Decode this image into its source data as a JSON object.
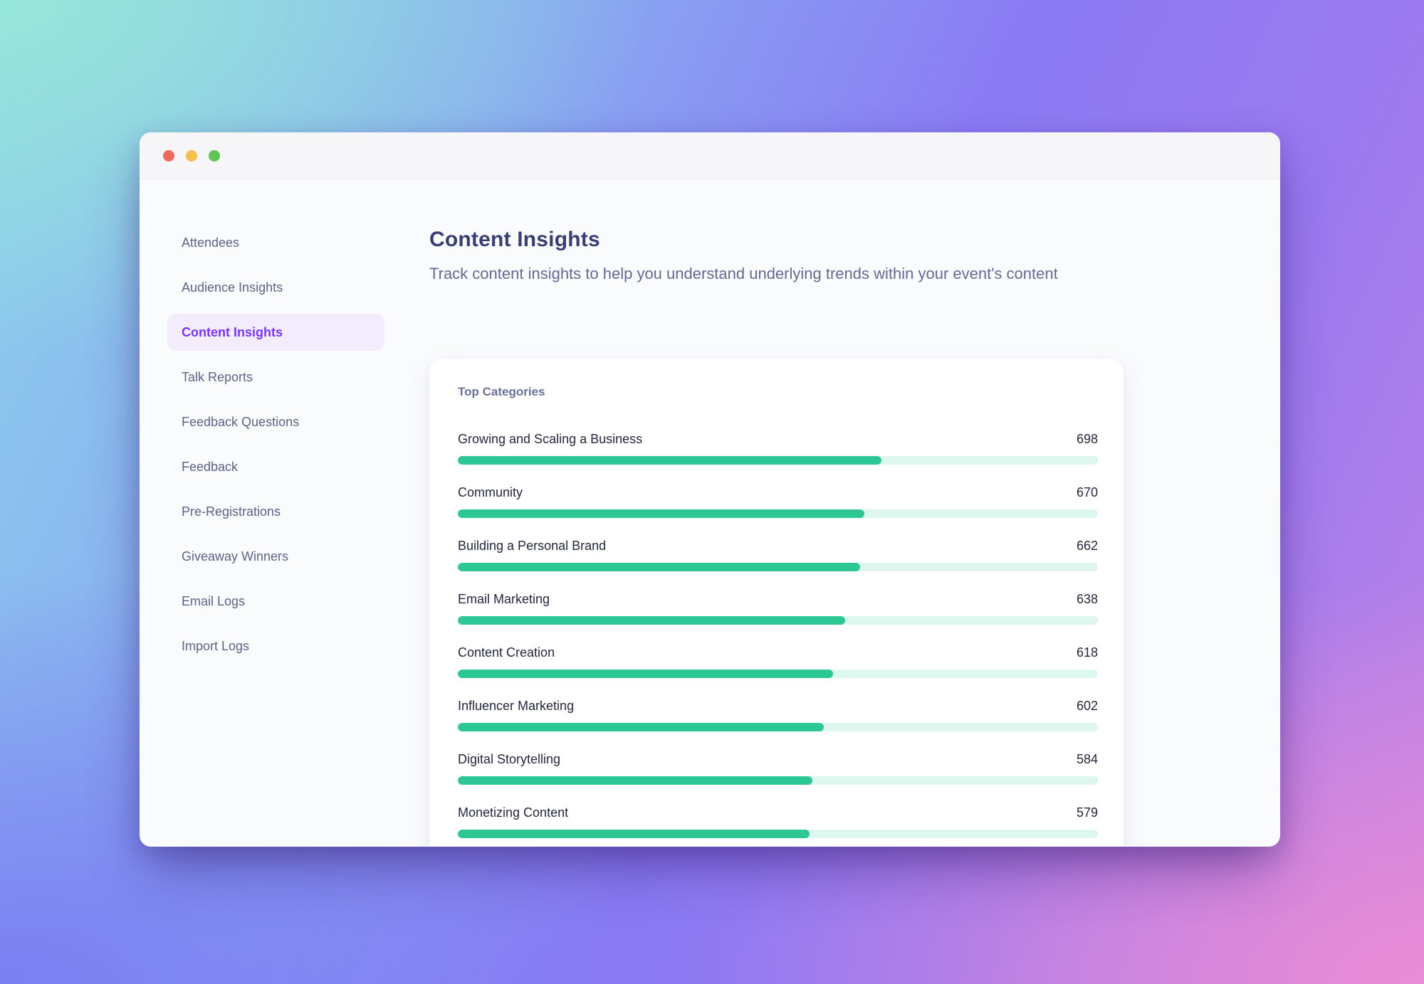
{
  "window": {
    "traffic_lights": [
      {
        "name": "close-button",
        "color": "#ec6a5e"
      },
      {
        "name": "minimize-button",
        "color": "#f4bf4f"
      },
      {
        "name": "zoom-button",
        "color": "#5fc454"
      }
    ]
  },
  "sidebar": {
    "items": [
      {
        "label": "Attendees",
        "active": false
      },
      {
        "label": "Audience Insights",
        "active": false
      },
      {
        "label": "Content Insights",
        "active": true
      },
      {
        "label": "Talk Reports",
        "active": false
      },
      {
        "label": "Feedback Questions",
        "active": false
      },
      {
        "label": "Feedback",
        "active": false
      },
      {
        "label": "Pre-Registrations",
        "active": false
      },
      {
        "label": "Giveaway Winners",
        "active": false
      },
      {
        "label": "Email Logs",
        "active": false
      },
      {
        "label": "Import Logs",
        "active": false
      }
    ],
    "active_text_color": "#7836f2",
    "active_bg_color": "#f2ecfd"
  },
  "header": {
    "title": "Content Insights",
    "subtitle": "Track content insights to help you understand underlying trends within your event's content"
  },
  "chart_data": {
    "type": "bar",
    "title": "Top Categories",
    "orientation": "horizontal",
    "categories": [
      "Growing and Scaling a Business",
      "Community",
      "Building a Personal Brand",
      "Email Marketing",
      "Content Creation",
      "Influencer Marketing",
      "Digital Storytelling",
      "Monetizing Content"
    ],
    "values": [
      698,
      670,
      662,
      638,
      618,
      602,
      584,
      579
    ],
    "xlim": [
      0,
      1054
    ],
    "grid": false,
    "legend": false,
    "bar_color": "#2cc794",
    "track_color": "#def7ee"
  }
}
